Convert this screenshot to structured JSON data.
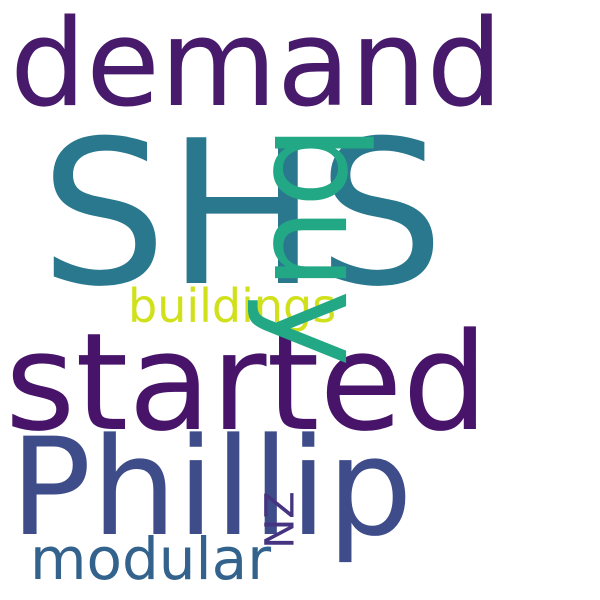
{
  "words": {
    "demand": {
      "text": "demand",
      "color": "#481a6c"
    },
    "shs": {
      "text": "SHS",
      "color": "#2a788e"
    },
    "buy": {
      "text": "buy",
      "color": "#22a884"
    },
    "buildings": {
      "text": "buildings",
      "color": "#d0e11c"
    },
    "started": {
      "text": "started",
      "color": "#471469"
    },
    "phillip": {
      "text": "Phillip",
      "color": "#3e4c8a"
    },
    "nz": {
      "text": "NZ",
      "color": "#463480"
    },
    "modular": {
      "text": "modular",
      "color": "#33638d"
    }
  }
}
